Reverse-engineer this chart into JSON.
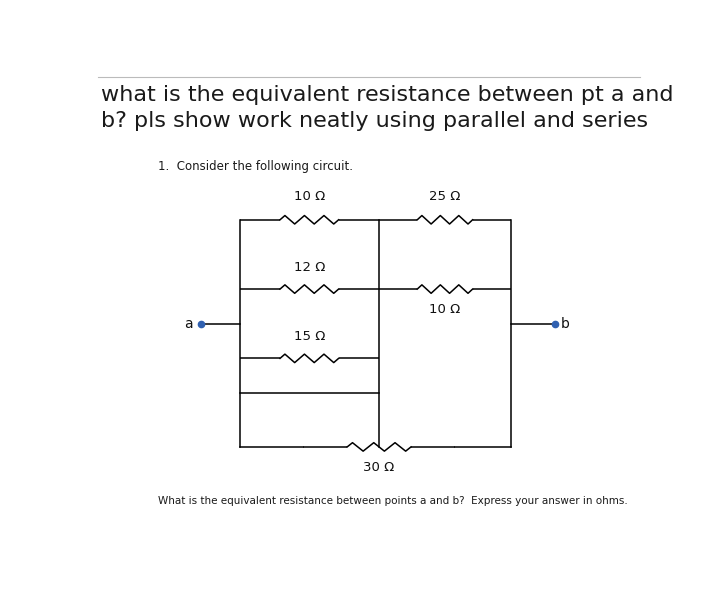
{
  "title_line1": "what is the equivalent resistance between pt a and",
  "title_line2": "b? pls show work neatly using parallel and series",
  "subtitle": "1.  Consider the following circuit.",
  "footer": "What is the equivalent resistance between points a and b?  Express your answer in ohms.",
  "bg_color": "#ffffff",
  "R_10top": "10 Ω",
  "R_25": "25 Ω",
  "R_12": "12 Ω",
  "R_10mid": "10 Ω",
  "R_15": "15 Ω",
  "R_30": "30 Ω",
  "label_a": "a",
  "label_b": "b",
  "title_fontsize": 16,
  "subtitle_fontsize": 8.5,
  "footer_fontsize": 7.5,
  "res_fontsize": 9.5,
  "label_fontsize": 10
}
